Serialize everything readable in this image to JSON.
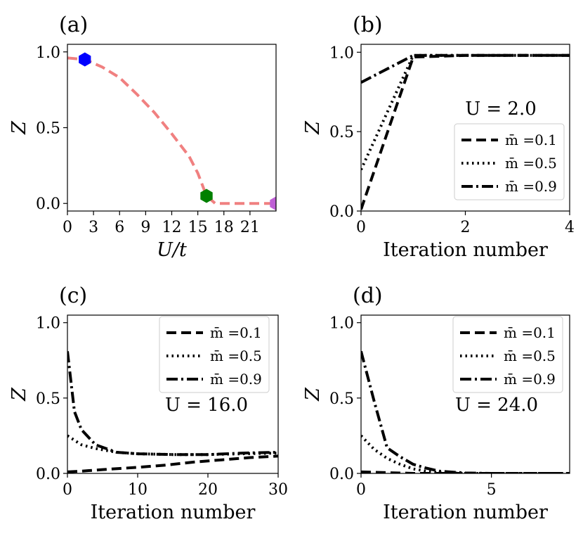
{
  "colors": {
    "curve": "#f08080",
    "marker_blue": "#0000ff",
    "marker_green": "#008000",
    "marker_violet": "#bf5fd6",
    "line": "#000000"
  },
  "chart_data": [
    {
      "panel": "(a)",
      "type": "line",
      "xlabel": "U/t",
      "ylabel": "Z",
      "xlim": [
        0,
        24
      ],
      "ylim": [
        -0.05,
        1.05
      ],
      "xticks": [
        0,
        3,
        6,
        9,
        12,
        15,
        18,
        21
      ],
      "xtick_labels": [
        "0",
        "3",
        "6",
        "9",
        "12",
        "15",
        "18",
        "21"
      ],
      "yticks": [
        0.0,
        0.5,
        1.0
      ],
      "ytick_labels": [
        "0.0",
        "0.5",
        "1.0"
      ],
      "series": [
        {
          "name": "Z(U)",
          "style": "dashed",
          "color": "#f08080",
          "x": [
            0,
            2,
            4,
            6,
            8,
            10,
            12,
            14,
            15,
            16,
            17,
            18,
            20,
            22,
            24
          ],
          "y": [
            0.96,
            0.95,
            0.9,
            0.83,
            0.72,
            0.6,
            0.46,
            0.31,
            0.2,
            0.05,
            0.0,
            0.0,
            0.0,
            0.0,
            0.0
          ]
        }
      ],
      "markers": [
        {
          "x": 2,
          "y": 0.95,
          "color": "#0000ff",
          "shape": "hexagon"
        },
        {
          "x": 16,
          "y": 0.05,
          "color": "#008000",
          "shape": "hexagon"
        },
        {
          "x": 24,
          "y": 0.0,
          "color": "#bf5fd6",
          "shape": "hexagon"
        }
      ]
    },
    {
      "panel": "(b)",
      "type": "line",
      "xlabel": "Iteration number",
      "ylabel": "Z",
      "xlim": [
        0,
        4
      ],
      "ylim": [
        0,
        1.05
      ],
      "xticks": [
        0,
        2,
        4
      ],
      "xtick_labels": [
        "0",
        "2",
        "4"
      ],
      "yticks": [
        0.0,
        0.5,
        1.0
      ],
      "ytick_labels": [
        "0.0",
        "0.5",
        "1.0"
      ],
      "annotation": {
        "text": "U = 2.0",
        "color": "#0000ff"
      },
      "legend": {
        "location": "lower-right"
      },
      "series": [
        {
          "name": "m̄ =0.1",
          "style": "dashed",
          "x": [
            0,
            1,
            2,
            3,
            4
          ],
          "y": [
            0.01,
            0.97,
            0.98,
            0.98,
            0.98
          ]
        },
        {
          "name": "m̄ =0.5",
          "style": "dotted",
          "x": [
            0,
            1,
            2,
            3,
            4
          ],
          "y": [
            0.26,
            0.98,
            0.98,
            0.98,
            0.98
          ]
        },
        {
          "name": "m̄ =0.9",
          "style": "dashdot",
          "x": [
            0,
            1,
            2,
            3,
            4
          ],
          "y": [
            0.81,
            0.98,
            0.98,
            0.98,
            0.98
          ]
        }
      ]
    },
    {
      "panel": "(c)",
      "type": "line",
      "xlabel": "Iteration number",
      "ylabel": "Z",
      "xlim": [
        0,
        30
      ],
      "ylim": [
        0,
        1.05
      ],
      "xticks": [
        0,
        10,
        20,
        30
      ],
      "xtick_labels": [
        "0",
        "10",
        "20",
        "30"
      ],
      "yticks": [
        0.0,
        0.5,
        1.0
      ],
      "ytick_labels": [
        "0.0",
        "0.5",
        "1.0"
      ],
      "annotation": {
        "text": "U = 16.0",
        "color": "#008000"
      },
      "legend": {
        "location": "upper-right"
      },
      "series": [
        {
          "name": "m̄ =0.1",
          "style": "dashed",
          "x": [
            0,
            2,
            5,
            10,
            14,
            18,
            22,
            26,
            30
          ],
          "y": [
            0.01,
            0.015,
            0.025,
            0.04,
            0.055,
            0.075,
            0.09,
            0.105,
            0.115
          ]
        },
        {
          "name": "m̄ =0.5",
          "style": "dotted",
          "x": [
            0,
            1,
            2,
            4,
            7,
            10,
            15,
            20,
            25,
            30
          ],
          "y": [
            0.25,
            0.22,
            0.19,
            0.165,
            0.14,
            0.13,
            0.125,
            0.125,
            0.13,
            0.135
          ]
        },
        {
          "name": "m̄ =0.9",
          "style": "dashdot",
          "x": [
            0,
            1,
            2,
            4,
            7,
            10,
            15,
            20,
            25,
            30
          ],
          "y": [
            0.81,
            0.41,
            0.29,
            0.19,
            0.14,
            0.13,
            0.125,
            0.125,
            0.135,
            0.14
          ]
        }
      ]
    },
    {
      "panel": "(d)",
      "type": "line",
      "xlabel": "Iteration number",
      "ylabel": "Z",
      "xlim": [
        0,
        8
      ],
      "ylim": [
        0,
        1.05
      ],
      "xticks": [
        0,
        5
      ],
      "xtick_labels": [
        "0",
        "5"
      ],
      "yticks": [
        0.0,
        0.5,
        1.0
      ],
      "ytick_labels": [
        "0.0",
        "0.5",
        "1.0"
      ],
      "annotation": {
        "text": "U = 24.0",
        "color": "#bf5fd6"
      },
      "legend": {
        "location": "upper-right"
      },
      "series": [
        {
          "name": "m̄ =0.1",
          "style": "dashed",
          "x": [
            0,
            2,
            4,
            6,
            8
          ],
          "y": [
            0.01,
            0.0,
            0.0,
            0.0,
            0.0
          ]
        },
        {
          "name": "m̄ =0.5",
          "style": "dotted",
          "x": [
            0,
            0.5,
            1,
            1.5,
            2,
            2.5,
            3,
            4,
            5,
            8
          ],
          "y": [
            0.25,
            0.16,
            0.1,
            0.06,
            0.03,
            0.015,
            0.005,
            0.0,
            0.0,
            0.0
          ]
        },
        {
          "name": "m̄ =0.9",
          "style": "dashdot",
          "x": [
            0,
            0.5,
            1,
            1.5,
            2,
            2.5,
            3,
            4,
            5,
            8
          ],
          "y": [
            0.81,
            0.48,
            0.17,
            0.11,
            0.06,
            0.035,
            0.015,
            0.003,
            0.0,
            0.0
          ]
        }
      ]
    }
  ]
}
